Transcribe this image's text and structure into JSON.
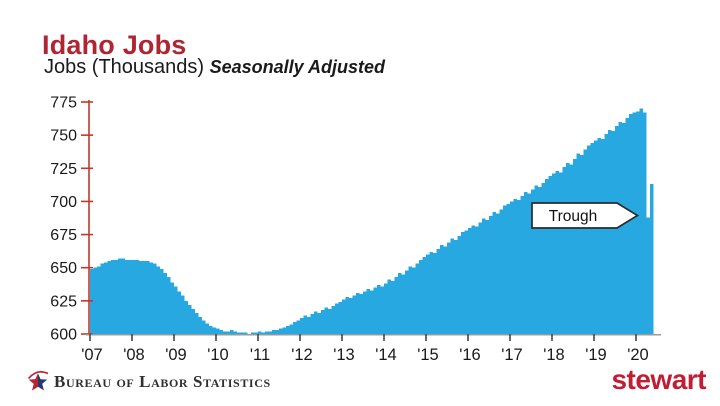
{
  "page": {
    "title": "Idaho Jobs",
    "subtitle_main": "Jobs (Thousands)",
    "subtitle_italic": "Seasonally Adjusted"
  },
  "colors": {
    "title_red": "#b02532",
    "bar_blue": "#27a8e1",
    "y_axis_red": "#c0392b",
    "x_axis_gray": "#9a9a9a",
    "tick_dark": "#444444",
    "label_black": "#1a1a1a",
    "stewart_red": "#c01e34",
    "bls_navy": "#1e3a6e",
    "bls_red": "#c02030"
  },
  "chart_data": {
    "type": "bar",
    "title": "Idaho Jobs",
    "ylabel": "Jobs (Thousands), Seasonally Adjusted",
    "x_unit": "month",
    "start": "2007-01",
    "end": "2020-05",
    "ylim": [
      600,
      775
    ],
    "y_ticks": [
      600,
      625,
      650,
      675,
      700,
      725,
      750,
      775
    ],
    "x_tick_labels": [
      "'07",
      "'08",
      "'09",
      "'10",
      "'11",
      "'12",
      "'13",
      "'14",
      "'15",
      "'16",
      "'17",
      "'18",
      "'19",
      "'20"
    ],
    "grid": false,
    "legend": "none",
    "bar_color": "#27a8e1",
    "series": [
      {
        "year": 2007,
        "values": [
          649,
          650,
          651,
          653,
          654,
          655,
          656,
          656,
          657,
          657,
          656,
          656
        ]
      },
      {
        "year": 2008,
        "values": [
          656,
          656,
          655,
          655,
          655,
          654,
          653,
          651,
          649,
          646,
          643,
          639
        ]
      },
      {
        "year": 2009,
        "values": [
          636,
          632,
          629,
          625,
          622,
          619,
          616,
          613,
          610,
          608,
          606,
          605
        ]
      },
      {
        "year": 2010,
        "values": [
          604,
          603,
          602,
          602,
          603,
          602,
          601,
          601,
          601,
          600,
          601,
          601
        ]
      },
      {
        "year": 2011,
        "values": [
          602,
          601,
          602,
          602,
          603,
          603,
          604,
          605,
          606,
          607,
          609,
          610
        ]
      },
      {
        "year": 2012,
        "values": [
          612,
          614,
          613,
          615,
          617,
          616,
          618,
          620,
          619,
          621,
          623,
          624
        ]
      },
      {
        "year": 2013,
        "values": [
          626,
          628,
          627,
          629,
          631,
          630,
          632,
          634,
          633,
          635,
          637,
          636
        ]
      },
      {
        "year": 2014,
        "values": [
          638,
          641,
          640,
          643,
          646,
          645,
          648,
          651,
          650,
          653,
          656,
          658
        ]
      },
      {
        "year": 2015,
        "values": [
          660,
          662,
          661,
          664,
          667,
          666,
          669,
          672,
          671,
          674,
          677,
          678
        ]
      },
      {
        "year": 2016,
        "values": [
          680,
          682,
          681,
          684,
          687,
          686,
          689,
          692,
          691,
          694,
          697,
          698
        ]
      },
      {
        "year": 2017,
        "values": [
          700,
          702,
          701,
          704,
          707,
          706,
          709,
          712,
          711,
          714,
          717,
          719
        ]
      },
      {
        "year": 2018,
        "values": [
          721,
          723,
          722,
          726,
          729,
          728,
          732,
          736,
          735,
          739,
          742,
          744
        ]
      },
      {
        "year": 2019,
        "values": [
          746,
          748,
          747,
          751,
          754,
          753,
          757,
          760,
          759,
          763,
          766,
          767
        ]
      },
      {
        "year": 2020,
        "values": [
          768,
          770,
          767,
          688,
          713
        ]
      }
    ],
    "annotation": {
      "label": "Trough",
      "points_to": "2020-04",
      "value": 688
    }
  },
  "footer": {
    "left_logo_text": "Bureau of Labor Statistics",
    "right_logo_text": "stewart"
  }
}
